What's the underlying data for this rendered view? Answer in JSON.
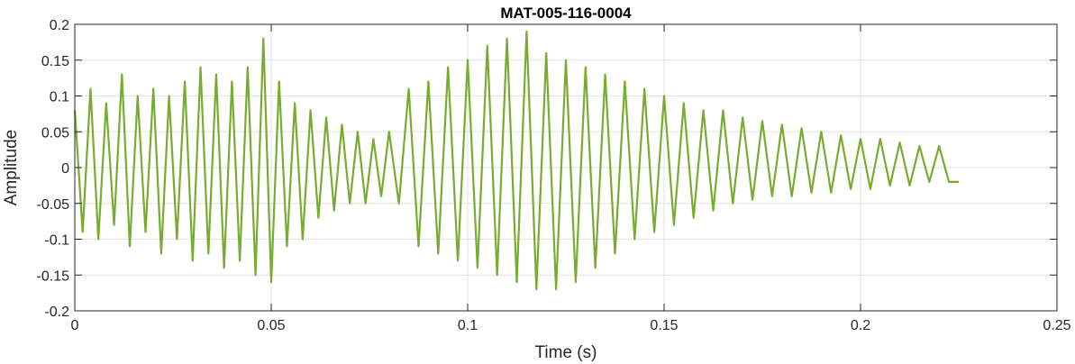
{
  "chart_data": {
    "type": "line",
    "title": "MAT-005-116-0004",
    "xlabel": "Time (s)",
    "ylabel": "Amplitude",
    "xlim": [
      0,
      0.25
    ],
    "ylim": [
      -0.2,
      0.2
    ],
    "xticks": [
      0,
      0.05,
      0.1,
      0.15,
      0.2,
      0.25
    ],
    "xtick_labels": [
      "0",
      "0.05",
      "0.1",
      "0.15",
      "0.2",
      "0.25"
    ],
    "yticks": [
      -0.2,
      -0.15,
      -0.1,
      -0.05,
      0,
      0.05,
      0.1,
      0.15,
      0.2
    ],
    "ytick_labels": [
      "-0.2",
      "-0.15",
      "-0.1",
      "-0.05",
      "0",
      "0.05",
      "0.1",
      "0.15",
      "0.2"
    ],
    "grid": true,
    "color": "#77AC30",
    "series": [
      {
        "x": [
          0,
          0.002,
          0.004,
          0.006,
          0.008,
          0.01,
          0.012,
          0.014,
          0.016,
          0.018,
          0.02,
          0.022,
          0.024,
          0.026,
          0.028,
          0.03,
          0.032,
          0.034,
          0.036,
          0.038,
          0.04,
          0.042,
          0.044,
          0.046,
          0.048,
          0.05,
          0.052,
          0.054,
          0.056,
          0.058,
          0.06,
          0.062,
          0.064,
          0.066,
          0.068,
          0.07,
          0.072,
          0.074,
          0.076,
          0.078,
          0.08,
          0.0825,
          0.085,
          0.0875,
          0.09,
          0.0925,
          0.095,
          0.0975,
          0.1,
          0.1025,
          0.105,
          0.1075,
          0.11,
          0.1125,
          0.115,
          0.1175,
          0.12,
          0.1225,
          0.125,
          0.1275,
          0.13,
          0.1325,
          0.135,
          0.1375,
          0.14,
          0.1425,
          0.145,
          0.1475,
          0.15,
          0.1525,
          0.155,
          0.1575,
          0.16,
          0.1625,
          0.165,
          0.1675,
          0.17,
          0.1725,
          0.175,
          0.1775,
          0.18,
          0.1825,
          0.185,
          0.1875,
          0.19,
          0.1925,
          0.195,
          0.1975,
          0.2,
          0.2025,
          0.205,
          0.2075,
          0.21,
          0.2125,
          0.215,
          0.2175,
          0.22,
          0.2225,
          0.225
        ],
        "y": [
          0.08,
          -0.09,
          0.11,
          -0.1,
          0.09,
          -0.08,
          0.13,
          -0.11,
          0.1,
          -0.09,
          0.11,
          -0.12,
          0.1,
          -0.1,
          0.12,
          -0.13,
          0.14,
          -0.12,
          0.13,
          -0.14,
          0.12,
          -0.13,
          0.14,
          -0.15,
          0.18,
          -0.16,
          0.12,
          -0.11,
          0.09,
          -0.1,
          0.08,
          -0.07,
          0.07,
          -0.06,
          0.06,
          -0.05,
          0.05,
          -0.05,
          0.04,
          -0.04,
          0.05,
          -0.05,
          0.11,
          -0.11,
          0.12,
          -0.12,
          0.14,
          -0.13,
          0.15,
          -0.14,
          0.17,
          -0.15,
          0.18,
          -0.16,
          0.19,
          -0.17,
          0.16,
          -0.17,
          0.15,
          -0.16,
          0.14,
          -0.14,
          0.13,
          -0.12,
          0.12,
          -0.1,
          0.11,
          -0.09,
          0.1,
          -0.08,
          0.09,
          -0.07,
          0.08,
          -0.06,
          0.08,
          -0.05,
          0.07,
          -0.045,
          0.065,
          -0.04,
          0.06,
          -0.04,
          0.055,
          -0.035,
          0.05,
          -0.035,
          0.045,
          -0.03,
          0.04,
          -0.03,
          0.04,
          -0.025,
          0.035,
          -0.025,
          0.03,
          -0.02,
          0.03,
          -0.02,
          -0.02
        ]
      }
    ]
  }
}
